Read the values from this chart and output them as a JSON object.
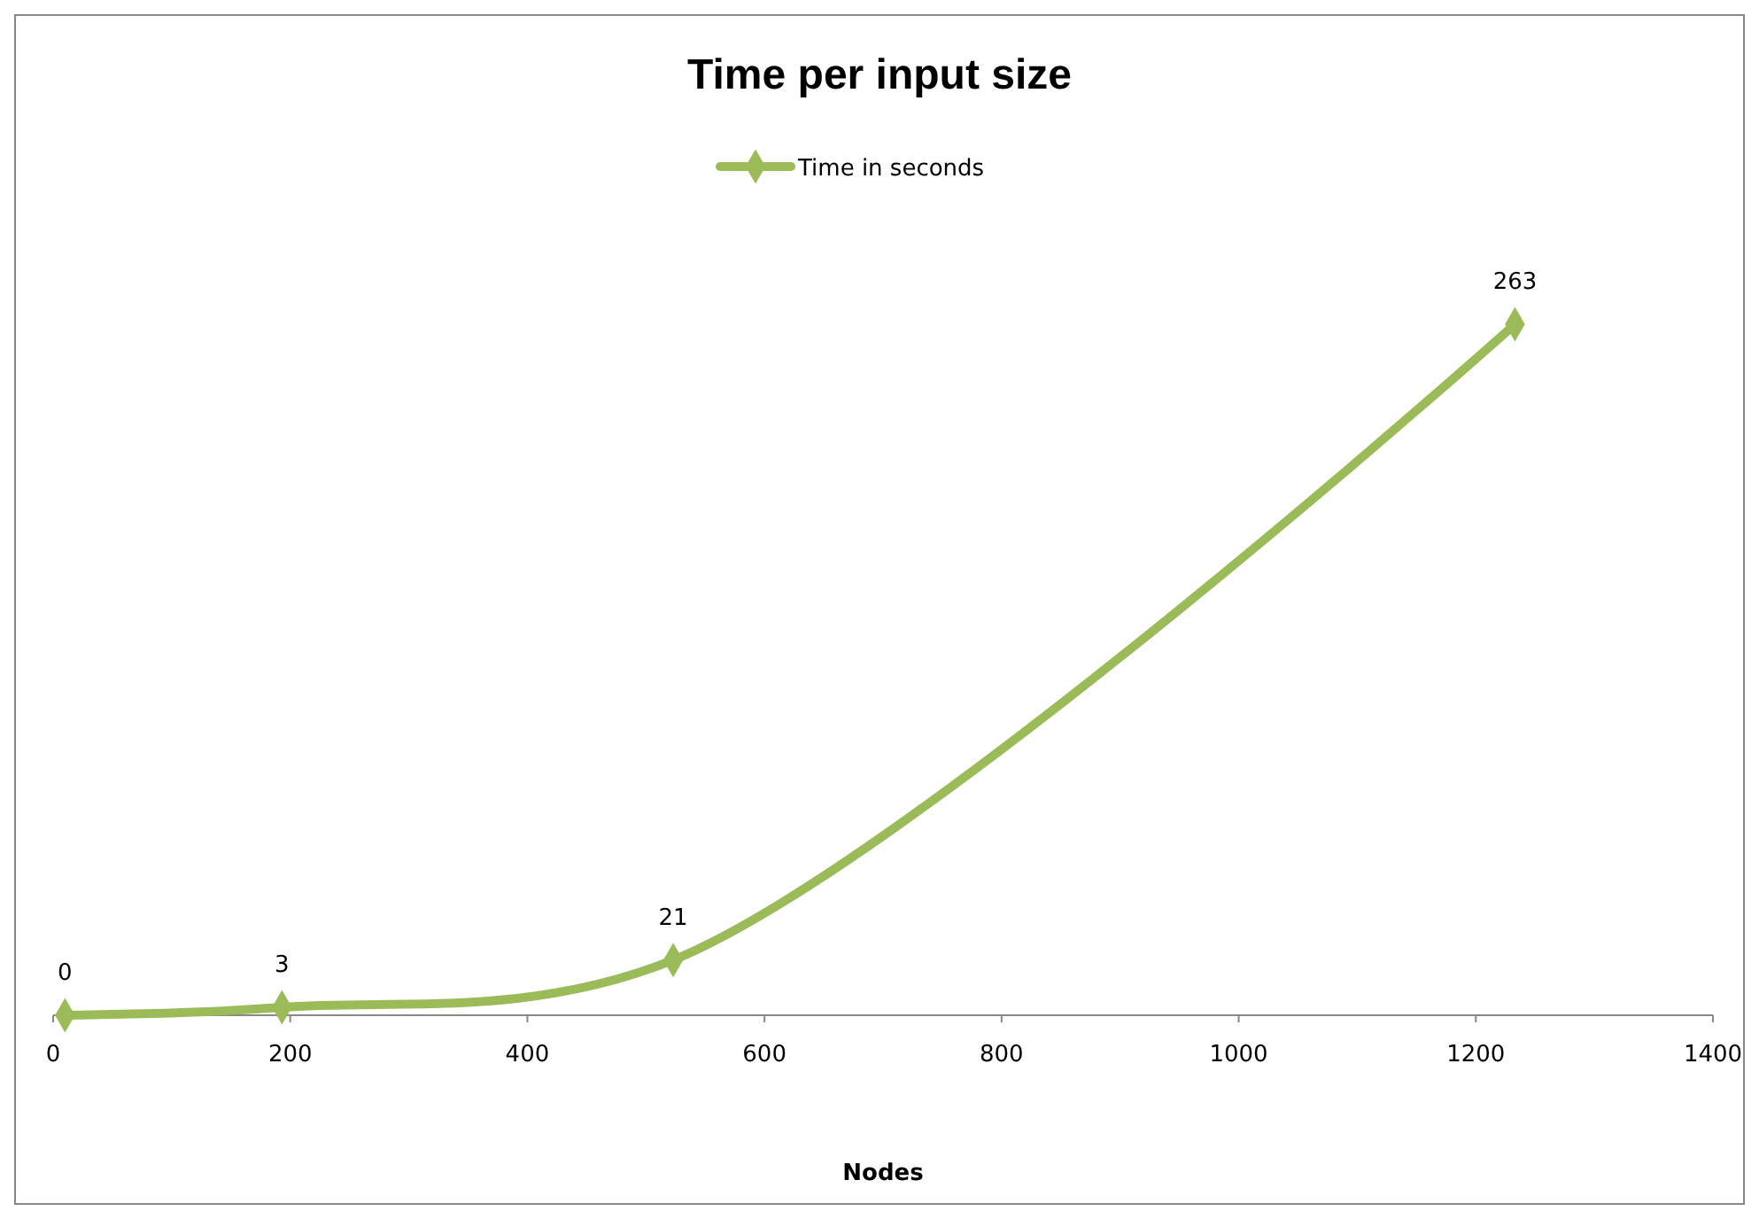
{
  "chart_data": {
    "type": "line",
    "title": "Time per input size",
    "xlabel": "Nodes",
    "x": [
      10,
      193,
      523,
      1233
    ],
    "series": [
      {
        "name": "Time in seconds",
        "color": "#9bbb59",
        "values": [
          0,
          3,
          21,
          263
        ]
      }
    ],
    "xlim": [
      0,
      1400
    ],
    "xticks": [
      0,
      200,
      400,
      600,
      800,
      1000,
      1200,
      1400
    ],
    "data_labels": true,
    "legend": "top",
    "marker": "diamond",
    "grid": false
  }
}
